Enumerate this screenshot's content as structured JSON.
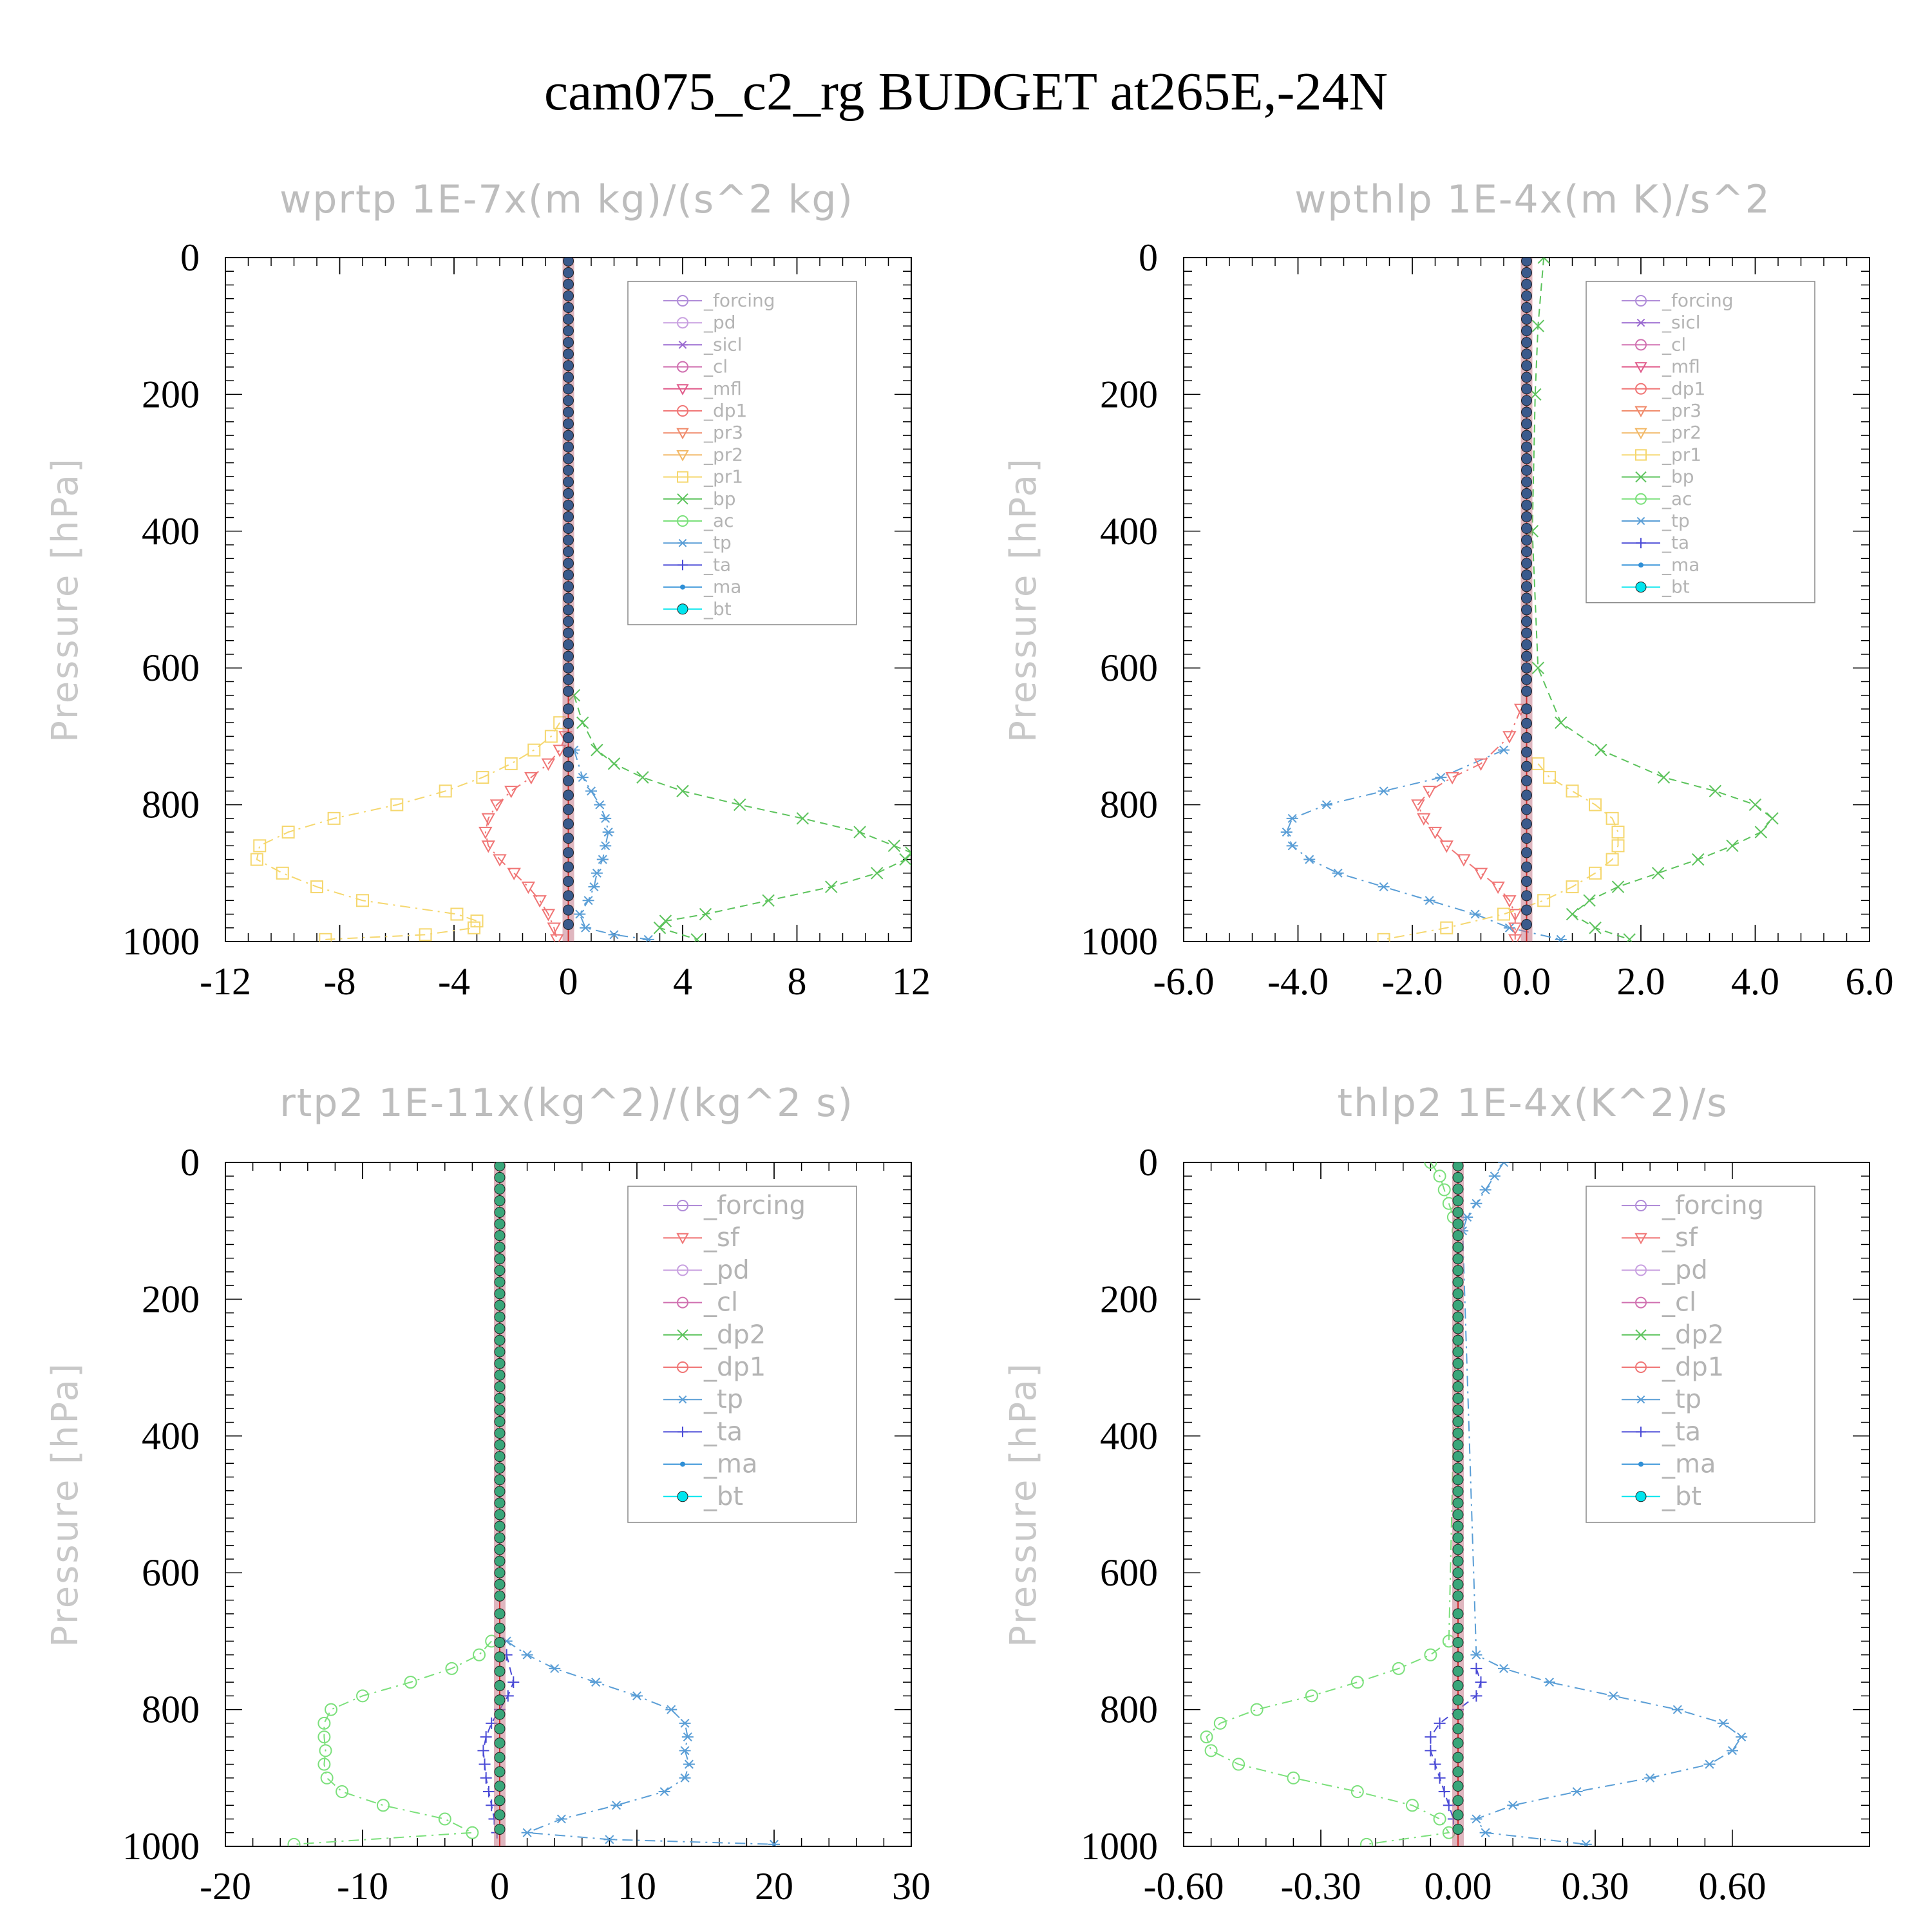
{
  "figure_title": "cam075_c2_rg  BUDGET at265E,-24N",
  "chart_data": [
    {
      "type": "line",
      "title": "wprtp  1E-7x(m kg)/(s^2 kg)",
      "ylabel": "Pressure [hPa]",
      "xlim": [
        -12,
        12
      ],
      "ylim": [
        0,
        1000
      ],
      "y_inverted": true,
      "xticks": [
        -12,
        -8,
        -4,
        0,
        4,
        8,
        12
      ],
      "xtick_labels": [
        "-12",
        "-8",
        "-4",
        "0",
        "4",
        "8",
        "12"
      ],
      "yticks": [
        0,
        200,
        400,
        600,
        800,
        1000
      ],
      "ytick_labels": [
        "0",
        "200",
        "400",
        "600",
        "800",
        "1000"
      ],
      "legend_placement": "top-right",
      "legend": [
        "_forcing",
        "_pd",
        "_sicl",
        "_cl",
        "_mfl",
        "_dp1",
        "_pr3",
        "_pr2",
        "_pr1",
        "_bp",
        "_ac",
        "_tp",
        "_ta",
        "_ma",
        "_bt"
      ],
      "series": [
        {
          "name": "_pr1",
          "color": "#f5d76e",
          "marker": "square",
          "dash": "dashdot",
          "y": [
            680,
            700,
            720,
            740,
            760,
            780,
            800,
            820,
            840,
            860,
            880,
            900,
            920,
            940,
            960,
            970,
            980,
            990,
            997
          ],
          "x": [
            -0.3,
            -0.6,
            -1.2,
            -2.0,
            -3.0,
            -4.3,
            -6.0,
            -8.2,
            -9.8,
            -10.8,
            -10.9,
            -10.0,
            -8.8,
            -7.2,
            -3.9,
            -3.2,
            -3.3,
            -5.0,
            -8.5
          ]
        },
        {
          "name": "_dp1",
          "color": "#f07575",
          "marker": "triangle-down",
          "dash": "dashdot",
          "y": [
            700,
            720,
            740,
            760,
            780,
            800,
            820,
            840,
            860,
            880,
            900,
            920,
            940,
            960,
            980,
            997
          ],
          "x": [
            -0.1,
            -0.3,
            -0.7,
            -1.3,
            -2.0,
            -2.5,
            -2.8,
            -2.9,
            -2.8,
            -2.4,
            -1.9,
            -1.4,
            -1.0,
            -0.7,
            -0.5,
            -0.4
          ]
        },
        {
          "name": "_bp",
          "color": "#5cc35c",
          "marker": "x",
          "dash": "dashed",
          "y": [
            640,
            680,
            720,
            740,
            760,
            780,
            800,
            820,
            840,
            860,
            870,
            880,
            900,
            920,
            940,
            960,
            970,
            980,
            997
          ],
          "x": [
            0.2,
            0.5,
            1.0,
            1.6,
            2.6,
            4.0,
            6.0,
            8.2,
            10.2,
            11.4,
            12.0,
            11.8,
            10.8,
            9.2,
            7.0,
            4.8,
            3.4,
            3.2,
            4.5
          ]
        },
        {
          "name": "_tp",
          "color": "#5a9ed6",
          "marker": "asterisk",
          "dash": "dashdot",
          "y": [
            720,
            760,
            780,
            800,
            820,
            840,
            860,
            880,
            900,
            920,
            940,
            960,
            980,
            990,
            997
          ],
          "x": [
            0.2,
            0.5,
            0.8,
            1.1,
            1.3,
            1.4,
            1.3,
            1.2,
            1.0,
            0.9,
            0.7,
            0.4,
            0.6,
            1.6,
            2.8
          ]
        },
        {
          "name": "_bt",
          "color": "#3a5a8c",
          "marker": "circle-filled",
          "dash": "solid",
          "column": true,
          "x_const": 0.0
        }
      ]
    },
    {
      "type": "line",
      "title": "wpthlp  1E-4x(m K)/s^2",
      "ylabel": "Pressure [hPa]",
      "xlim": [
        -6.0,
        6.0
      ],
      "ylim": [
        0,
        1000
      ],
      "y_inverted": true,
      "xticks": [
        -6,
        -4,
        -2,
        0,
        2,
        4,
        6
      ],
      "xtick_labels": [
        "-6.0",
        "-4.0",
        "-2.0",
        "0.0",
        "2.0",
        "4.0",
        "6.0"
      ],
      "yticks": [
        0,
        200,
        400,
        600,
        800,
        1000
      ],
      "ytick_labels": [
        "0",
        "200",
        "400",
        "600",
        "800",
        "1000"
      ],
      "legend_placement": "top-right",
      "legend": [
        "_forcing",
        "_sicl",
        "_cl",
        "_mfl",
        "_dp1",
        "_pr3",
        "_pr2",
        "_pr1",
        "_bp",
        "_ac",
        "_tp",
        "_ta",
        "_ma",
        "_bt"
      ],
      "series": [
        {
          "name": "_bp",
          "color": "#5cc35c",
          "marker": "x",
          "dash": "dashed",
          "y": [
            0,
            100,
            200,
            400,
            600,
            680,
            720,
            760,
            780,
            800,
            820,
            840,
            860,
            880,
            900,
            920,
            940,
            960,
            980,
            997
          ],
          "x": [
            0.3,
            0.2,
            0.15,
            0.1,
            0.2,
            0.6,
            1.3,
            2.4,
            3.3,
            4.0,
            4.3,
            4.1,
            3.6,
            3.0,
            2.3,
            1.6,
            1.1,
            0.8,
            1.2,
            1.8
          ]
        },
        {
          "name": "_tp",
          "color": "#5a9ed6",
          "marker": "asterisk",
          "dash": "dashdot",
          "y": [
            720,
            760,
            780,
            800,
            820,
            840,
            860,
            880,
            900,
            920,
            940,
            960,
            980,
            997
          ],
          "x": [
            -0.4,
            -1.5,
            -2.5,
            -3.5,
            -4.1,
            -4.2,
            -4.1,
            -3.8,
            -3.3,
            -2.5,
            -1.7,
            -0.9,
            -0.3,
            0.6
          ]
        },
        {
          "name": "_dp1",
          "color": "#f07575",
          "marker": "triangle-down",
          "dash": "dashdot",
          "y": [
            660,
            700,
            740,
            760,
            780,
            800,
            820,
            840,
            860,
            880,
            900,
            920,
            940,
            960,
            980,
            997
          ],
          "x": [
            -0.1,
            -0.3,
            -0.8,
            -1.3,
            -1.7,
            -1.9,
            -1.8,
            -1.6,
            -1.4,
            -1.1,
            -0.8,
            -0.5,
            -0.3,
            -0.2,
            -0.2,
            -0.2
          ]
        },
        {
          "name": "_pr1",
          "color": "#f5d76e",
          "marker": "square",
          "dash": "dashdot",
          "y": [
            740,
            760,
            780,
            800,
            820,
            840,
            860,
            880,
            900,
            920,
            940,
            960,
            980,
            997
          ],
          "x": [
            0.2,
            0.4,
            0.8,
            1.2,
            1.5,
            1.6,
            1.6,
            1.5,
            1.2,
            0.8,
            0.3,
            -0.4,
            -1.4,
            -2.5
          ]
        },
        {
          "name": "_bt",
          "color": "#3a5a8c",
          "marker": "circle-filled",
          "dash": "solid",
          "column": true,
          "x_const": 0.0
        }
      ]
    },
    {
      "type": "line",
      "title": "rtp2  1E-11x(kg^2)/(kg^2 s)",
      "ylabel": "Pressure [hPa]",
      "xlim": [
        -20,
        30
      ],
      "ylim": [
        0,
        1000
      ],
      "y_inverted": true,
      "xticks": [
        -20,
        -10,
        0,
        10,
        20,
        30
      ],
      "xtick_labels": [
        "-20",
        "-10",
        "0",
        "10",
        "20",
        "30"
      ],
      "yticks": [
        0,
        200,
        400,
        600,
        800,
        1000
      ],
      "ytick_labels": [
        "0",
        "200",
        "400",
        "600",
        "800",
        "1000"
      ],
      "legend_placement": "top-right",
      "legend": [
        "_forcing",
        "_sf",
        "_pd",
        "_cl",
        "_dp2",
        "_dp1",
        "_tp",
        "_ta",
        "_ma",
        "_bt"
      ],
      "series": [
        {
          "name": "_dp1",
          "color": "#7be07b",
          "marker": "circle",
          "dash": "dashdot",
          "y": [
            700,
            720,
            740,
            760,
            780,
            800,
            820,
            840,
            860,
            880,
            900,
            920,
            940,
            960,
            980,
            997
          ],
          "x": [
            -0.6,
            -1.5,
            -3.5,
            -6.5,
            -10.0,
            -12.3,
            -12.8,
            -12.8,
            -12.7,
            -12.8,
            -12.6,
            -11.5,
            -8.5,
            -4.0,
            -2.0,
            -15.0
          ]
        },
        {
          "name": "_tp",
          "color": "#5a9ed6",
          "marker": "asterisk",
          "dash": "dashdot",
          "y": [
            700,
            720,
            740,
            760,
            780,
            800,
            820,
            840,
            860,
            880,
            900,
            920,
            940,
            960,
            980,
            990,
            997
          ],
          "x": [
            0.5,
            2.0,
            4.0,
            7.0,
            10.0,
            12.5,
            13.5,
            13.7,
            13.5,
            13.8,
            13.5,
            12.0,
            8.5,
            4.5,
            2.0,
            8.0,
            20.0
          ]
        },
        {
          "name": "_ta",
          "color": "#4b4bd6",
          "marker": "plus",
          "dash": "dashed",
          "y": [
            720,
            760,
            780,
            800,
            820,
            840,
            860,
            880,
            900,
            920,
            940,
            960,
            980
          ],
          "x": [
            0.5,
            1.0,
            0.6,
            0.0,
            -0.6,
            -1.0,
            -1.2,
            -1.1,
            -1.0,
            -0.8,
            -0.6,
            -0.4,
            -0.2
          ]
        },
        {
          "name": "_bt",
          "color": "#3aa67a",
          "marker": "circle-filled",
          "dash": "solid",
          "column": true,
          "x_const": 0.0
        }
      ]
    },
    {
      "type": "line",
      "title": "thlp2  1E-4x(K^2)/s",
      "ylabel": "Pressure [hPa]",
      "xlim": [
        -0.6,
        0.9
      ],
      "ylim": [
        0,
        1000
      ],
      "y_inverted": true,
      "xticks": [
        -0.6,
        -0.3,
        0.0,
        0.3,
        0.6
      ],
      "xtick_labels": [
        "-0.60",
        "-0.30",
        "0.00",
        "0.30",
        "0.60"
      ],
      "yticks": [
        0,
        200,
        400,
        600,
        800,
        1000
      ],
      "ytick_labels": [
        "0",
        "200",
        "400",
        "600",
        "800",
        "1000"
      ],
      "legend_placement": "top-right",
      "legend": [
        "_forcing",
        "_sf",
        "_pd",
        "_cl",
        "_dp2",
        "_dp1",
        "_tp",
        "_ta",
        "_ma",
        "_bt"
      ],
      "series": [
        {
          "name": "_dp1",
          "color": "#7be07b",
          "marker": "circle",
          "dash": "dashdot",
          "y": [
            0,
            20,
            40,
            60,
            80,
            100,
            700,
            720,
            740,
            760,
            780,
            800,
            820,
            840,
            860,
            880,
            900,
            920,
            940,
            960,
            980,
            997
          ],
          "x": [
            -0.06,
            -0.04,
            -0.03,
            -0.02,
            -0.01,
            0.0,
            -0.02,
            -0.06,
            -0.13,
            -0.22,
            -0.32,
            -0.44,
            -0.52,
            -0.55,
            -0.54,
            -0.48,
            -0.36,
            -0.22,
            -0.1,
            -0.04,
            -0.02,
            -0.2
          ]
        },
        {
          "name": "_tp",
          "color": "#5a9ed6",
          "marker": "asterisk",
          "dash": "dashdot",
          "y": [
            0,
            20,
            40,
            60,
            80,
            100,
            720,
            740,
            760,
            780,
            800,
            820,
            840,
            860,
            880,
            900,
            920,
            940,
            960,
            980,
            997
          ],
          "x": [
            0.1,
            0.08,
            0.06,
            0.04,
            0.02,
            0.01,
            0.04,
            0.1,
            0.2,
            0.34,
            0.48,
            0.58,
            0.62,
            0.6,
            0.55,
            0.42,
            0.26,
            0.12,
            0.04,
            0.06,
            0.28
          ]
        },
        {
          "name": "_ta",
          "color": "#4b4bd6",
          "marker": "plus",
          "dash": "dashed",
          "y": [
            740,
            760,
            780,
            800,
            820,
            840,
            860,
            880,
            900,
            920,
            940,
            960
          ],
          "x": [
            0.04,
            0.05,
            0.04,
            0.0,
            -0.04,
            -0.06,
            -0.06,
            -0.05,
            -0.04,
            -0.03,
            -0.02,
            -0.01
          ]
        },
        {
          "name": "_bt",
          "color": "#3aa67a",
          "marker": "circle-filled",
          "dash": "solid",
          "column": true,
          "x_const": 0.0
        }
      ]
    }
  ]
}
